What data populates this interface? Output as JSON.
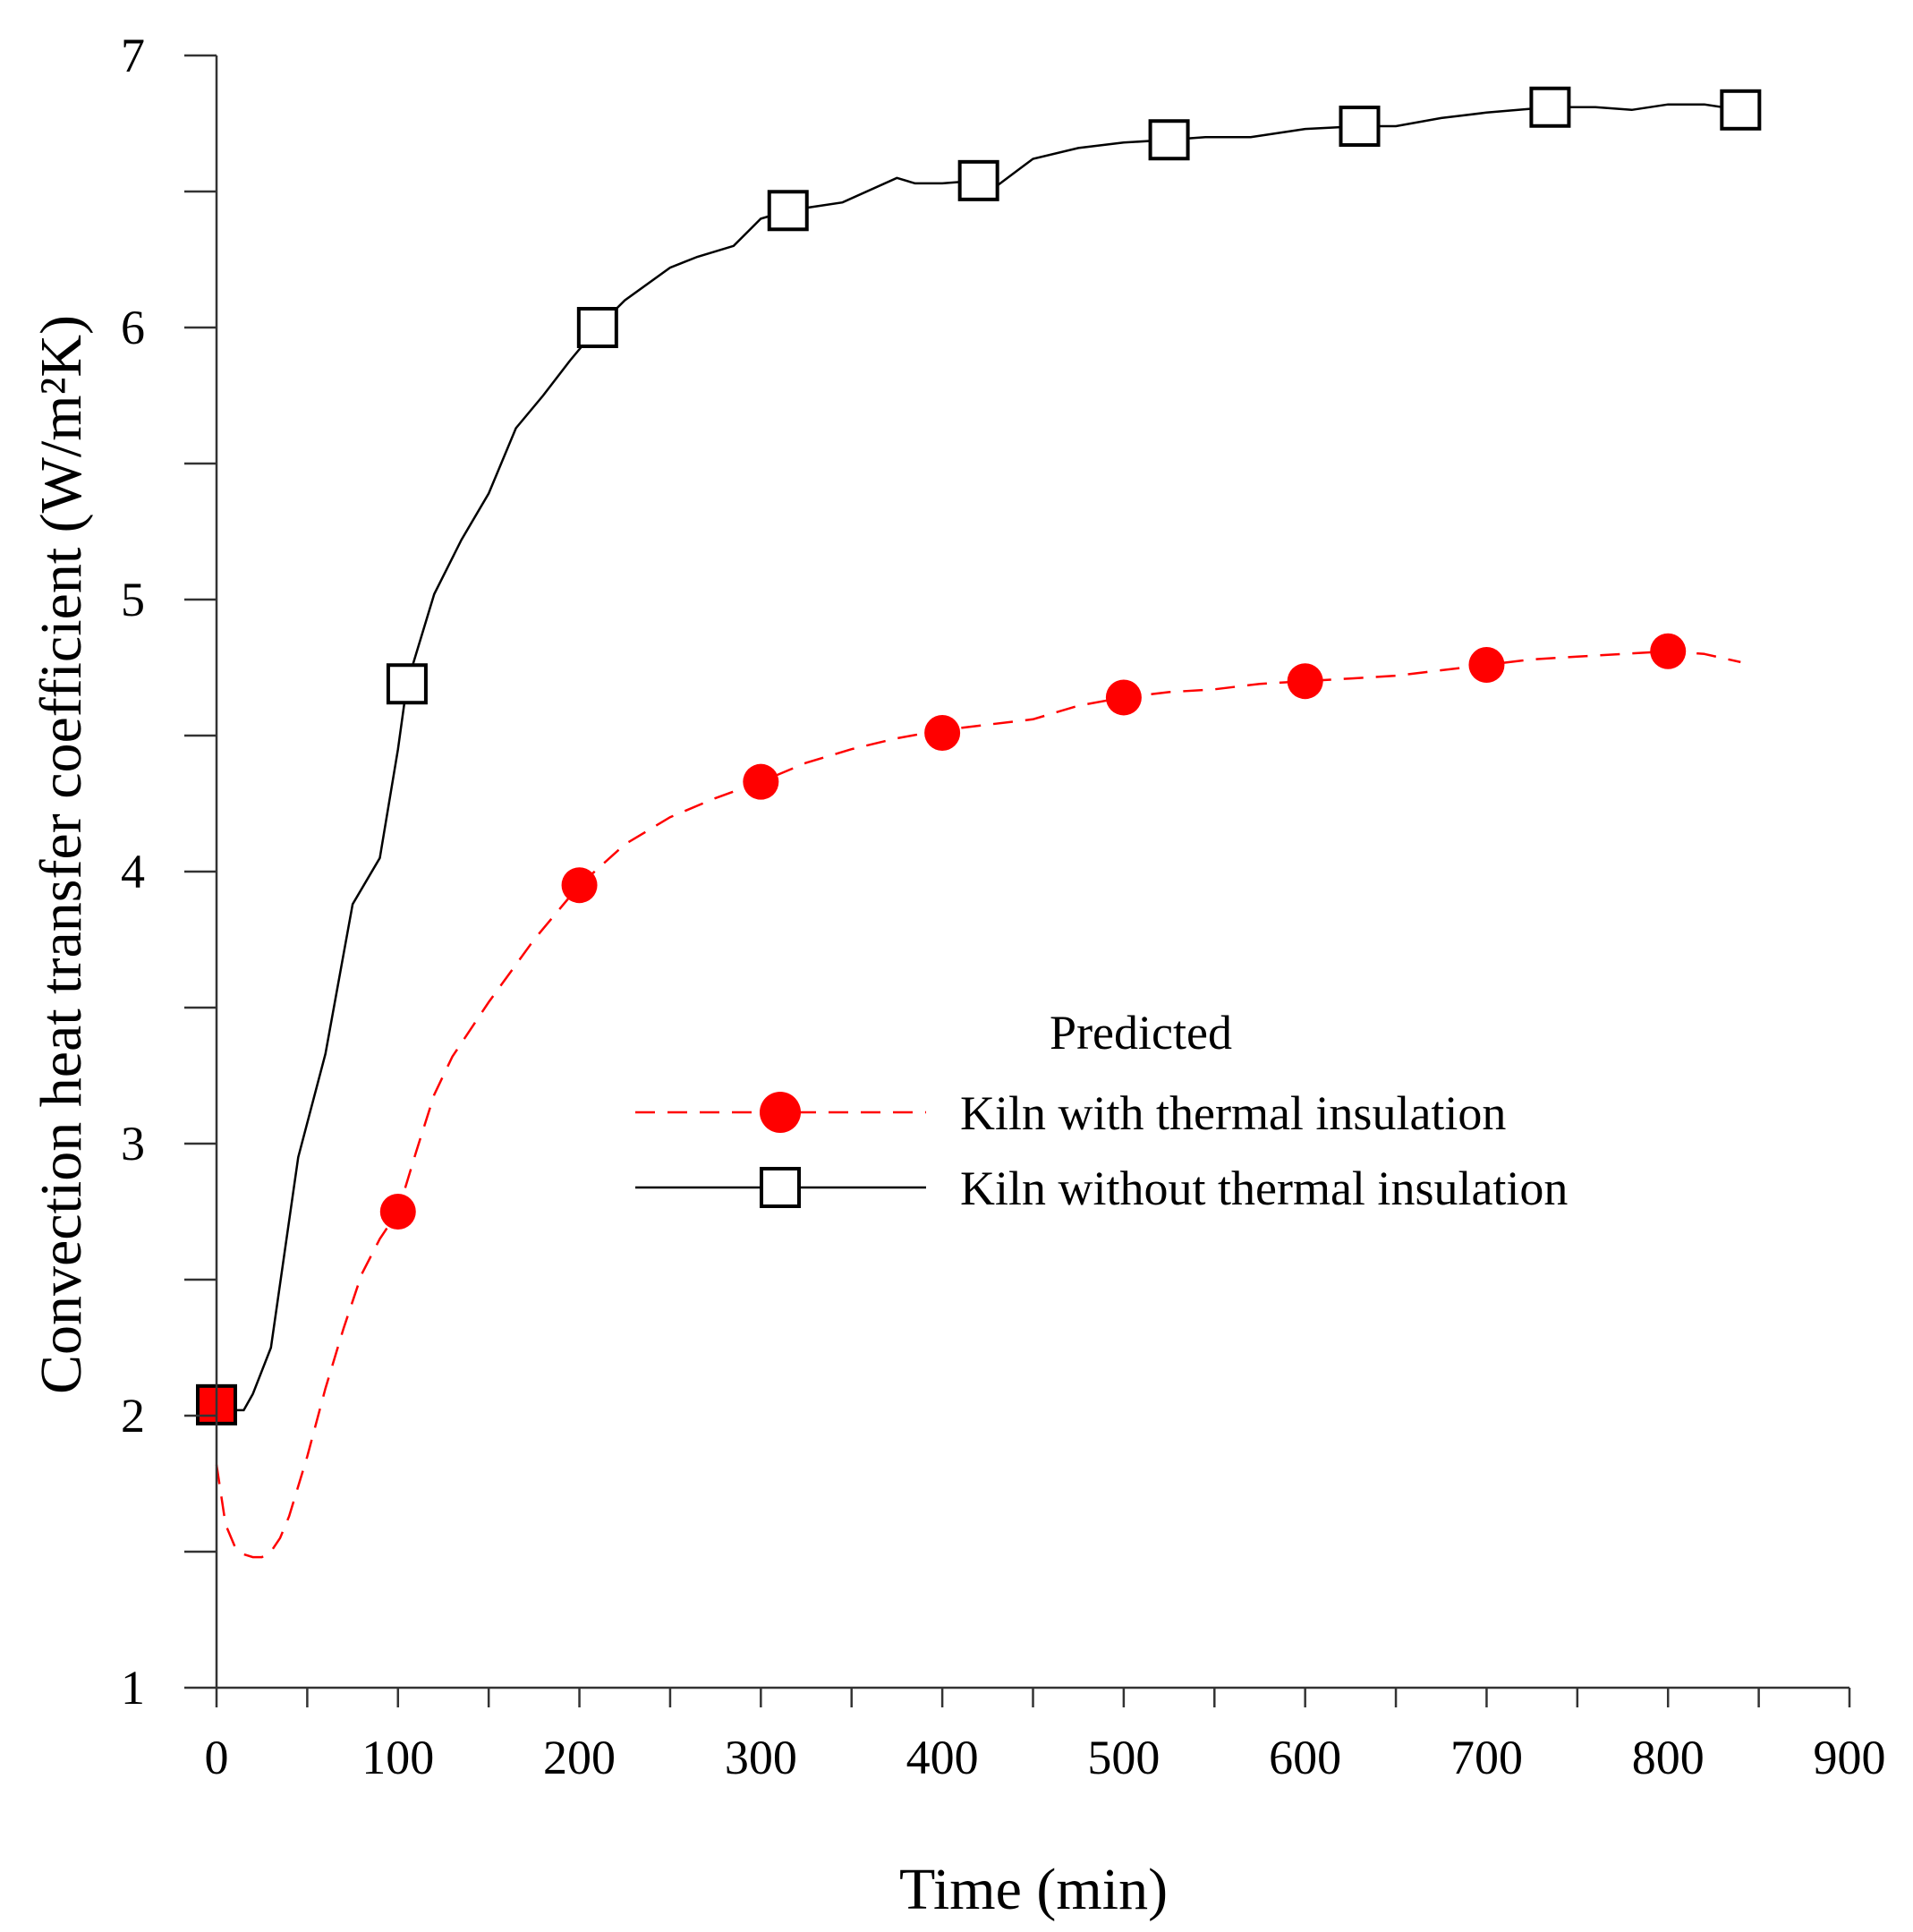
{
  "chart_data": {
    "type": "line",
    "xlabel": "Time (min)",
    "ylabel": "Convection heat transfer coefficient (W/m²K)",
    "xlim": [
      0,
      900
    ],
    "ylim": [
      1,
      7
    ],
    "x_ticks": [
      0,
      100,
      200,
      300,
      400,
      500,
      600,
      700,
      800,
      900
    ],
    "x_tick_labels": [
      "0",
      "100",
      "200",
      "300",
      "400",
      "500",
      "600",
      "700",
      "800",
      "900"
    ],
    "x_minor_ticks": [
      50,
      150,
      250,
      350,
      450,
      550,
      650,
      750,
      850
    ],
    "y_ticks": [
      1,
      2,
      3,
      4,
      5,
      6,
      7
    ],
    "y_tick_labels": [
      "1",
      "2",
      "3",
      "4",
      "5",
      "6",
      "7"
    ],
    "y_minor_ticks": [
      1.5,
      2.5,
      3.5,
      4.5,
      5.5,
      6.5
    ],
    "grid": false,
    "legend": {
      "title": "Predicted",
      "position": "center-right",
      "entries": [
        "Kiln with thermal insulation",
        "Kiln without thermal insulation"
      ]
    },
    "series": [
      {
        "name": "Kiln with thermal insulation",
        "color": "#ff0000",
        "line_style": "dashed",
        "marker": "filled-circle",
        "x": [
          0,
          5,
          10,
          15,
          20,
          25,
          30,
          35,
          40,
          50,
          60,
          70,
          80,
          90,
          100,
          110,
          120,
          130,
          150,
          175,
          200,
          225,
          250,
          275,
          300,
          325,
          350,
          375,
          400,
          425,
          450,
          475,
          500,
          525,
          550,
          575,
          600,
          625,
          650,
          675,
          700,
          725,
          750,
          775,
          800,
          820,
          840
        ],
        "y": [
          1.82,
          1.6,
          1.52,
          1.49,
          1.48,
          1.48,
          1.5,
          1.55,
          1.63,
          1.85,
          2.1,
          2.32,
          2.52,
          2.65,
          2.75,
          2.97,
          3.18,
          3.32,
          3.52,
          3.75,
          3.95,
          4.1,
          4.2,
          4.27,
          4.33,
          4.4,
          4.45,
          4.49,
          4.52,
          4.54,
          4.56,
          4.61,
          4.64,
          4.66,
          4.67,
          4.69,
          4.7,
          4.71,
          4.72,
          4.74,
          4.76,
          4.78,
          4.79,
          4.8,
          4.81,
          4.8,
          4.77
        ],
        "marker_x": [
          100,
          200,
          300,
          400,
          500,
          600,
          700,
          800
        ],
        "marker_y": [
          2.75,
          3.95,
          4.33,
          4.51,
          4.64,
          4.7,
          4.76,
          4.81
        ]
      },
      {
        "name": "Kiln without thermal insulation",
        "color": "#000000",
        "line_style": "solid",
        "marker": "open-square",
        "x": [
          0,
          5,
          10,
          15,
          20,
          30,
          45,
          60,
          75,
          90,
          100,
          105,
          120,
          135,
          150,
          165,
          180,
          195,
          210,
          225,
          250,
          265,
          285,
          300,
          315,
          345,
          375,
          385,
          400,
          420,
          430,
          450,
          475,
          500,
          525,
          545,
          570,
          600,
          630,
          650,
          675,
          700,
          735,
          760,
          780,
          800,
          820,
          840
        ],
        "y": [
          2.04,
          2.04,
          2.02,
          2.02,
          2.08,
          2.25,
          2.95,
          3.33,
          3.88,
          4.05,
          4.45,
          4.69,
          5.02,
          5.22,
          5.39,
          5.63,
          5.75,
          5.88,
          6.0,
          6.1,
          6.22,
          6.26,
          6.3,
          6.4,
          6.43,
          6.46,
          6.55,
          6.53,
          6.53,
          6.54,
          6.52,
          6.62,
          6.66,
          6.68,
          6.69,
          6.7,
          6.7,
          6.73,
          6.74,
          6.74,
          6.77,
          6.79,
          6.81,
          6.81,
          6.8,
          6.82,
          6.82,
          6.8
        ],
        "marker_x": [
          0,
          105,
          210,
          315,
          420,
          525,
          630,
          735,
          840
        ],
        "marker_y": [
          2.04,
          4.69,
          6.0,
          6.43,
          6.54,
          6.69,
          6.74,
          6.81,
          6.8
        ]
      }
    ],
    "annotations": [
      {
        "x": 0,
        "y": 2.04,
        "note": "initial point shown as red-filled square"
      }
    ]
  }
}
